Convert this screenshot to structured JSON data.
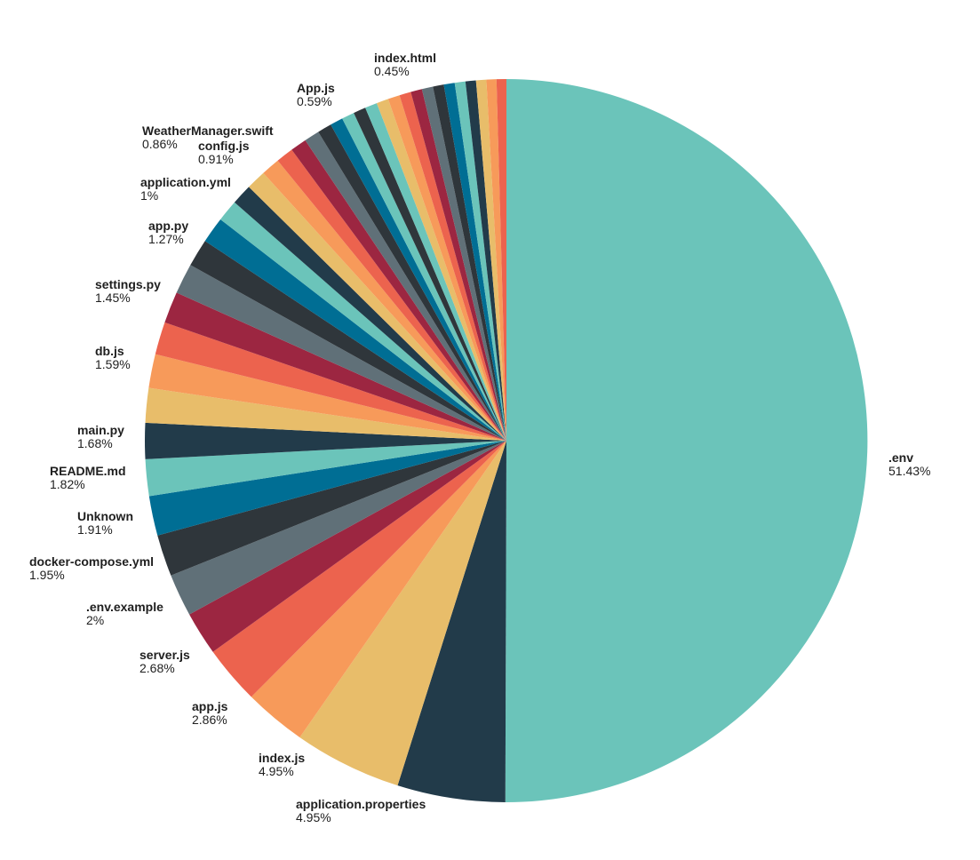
{
  "chart_data": {
    "type": "pie",
    "title": "",
    "start": "top, clockwise",
    "slices": [
      {
        "name": ".env",
        "pct_label": "51.43%",
        "value": 51.43,
        "color": "#6bc4ba",
        "labeled": true
      },
      {
        "name": "application.properties",
        "pct_label": "4.95%",
        "value": 4.95,
        "color": "#223b4a",
        "labeled": true
      },
      {
        "name": "index.js",
        "pct_label": "4.95%",
        "value": 4.95,
        "color": "#e8bd6a",
        "labeled": true
      },
      {
        "name": "app.js",
        "pct_label": "2.86%",
        "value": 2.86,
        "color": "#f79a5a",
        "labeled": true
      },
      {
        "name": "server.js",
        "pct_label": "2.68%",
        "value": 2.68,
        "color": "#ec634e",
        "labeled": true
      },
      {
        "name": ".env.example",
        "pct_label": "2%",
        "value": 2.0,
        "color": "#9c2641",
        "labeled": true
      },
      {
        "name": "docker-compose.yml",
        "pct_label": "1.95%",
        "value": 1.95,
        "color": "#607078",
        "labeled": true
      },
      {
        "name": "Unknown",
        "pct_label": "1.91%",
        "value": 1.91,
        "color": "#2f363b",
        "labeled": true
      },
      {
        "name": "README.md",
        "pct_label": "1.82%",
        "value": 1.82,
        "color": "#006e94",
        "labeled": true
      },
      {
        "name": "main.py",
        "pct_label": "1.68%",
        "value": 1.68,
        "color": "#6bc4ba",
        "labeled": true
      },
      {
        "name": "",
        "pct_label": "",
        "value": 1.65,
        "color": "#223b4a",
        "labeled": false
      },
      {
        "name": "db.js",
        "pct_label": "1.59%",
        "value": 1.59,
        "color": "#e8bd6a",
        "labeled": true
      },
      {
        "name": "",
        "pct_label": "",
        "value": 1.55,
        "color": "#f79a5a",
        "labeled": false
      },
      {
        "name": "",
        "pct_label": "",
        "value": 1.5,
        "color": "#ec634e",
        "labeled": false
      },
      {
        "name": "settings.py",
        "pct_label": "1.45%",
        "value": 1.45,
        "color": "#9c2641",
        "labeled": true
      },
      {
        "name": "",
        "pct_label": "",
        "value": 1.4,
        "color": "#607078",
        "labeled": false
      },
      {
        "name": "app.py",
        "pct_label": "1.27%",
        "value": 1.27,
        "color": "#2f363b",
        "labeled": true
      },
      {
        "name": "",
        "pct_label": "",
        "value": 1.2,
        "color": "#006e94",
        "labeled": false
      },
      {
        "name": "application.yml",
        "pct_label": "1%",
        "value": 1.0,
        "color": "#6bc4ba",
        "labeled": true
      },
      {
        "name": "",
        "pct_label": "",
        "value": 0.95,
        "color": "#223b4a",
        "labeled": false
      },
      {
        "name": "config.js",
        "pct_label": "0.91%",
        "value": 0.91,
        "color": "#e8bd6a",
        "labeled": true
      },
      {
        "name": "WeatherManager.swift",
        "pct_label": "0.86%",
        "value": 0.86,
        "color": "#f79a5a",
        "labeled": true
      },
      {
        "name": "",
        "pct_label": "",
        "value": 0.8,
        "color": "#ec634e",
        "labeled": false
      },
      {
        "name": "",
        "pct_label": "",
        "value": 0.75,
        "color": "#9c2641",
        "labeled": false
      },
      {
        "name": "",
        "pct_label": "",
        "value": 0.7,
        "color": "#607078",
        "labeled": false
      },
      {
        "name": "",
        "pct_label": "",
        "value": 0.65,
        "color": "#2f363b",
        "labeled": false
      },
      {
        "name": "App.js",
        "pct_label": "0.59%",
        "value": 0.59,
        "color": "#006e94",
        "labeled": true
      },
      {
        "name": "",
        "pct_label": "",
        "value": 0.58,
        "color": "#6bc4ba",
        "labeled": false
      },
      {
        "name": "",
        "pct_label": "",
        "value": 0.57,
        "color": "#2f363b",
        "labeled": false
      },
      {
        "name": "",
        "pct_label": "",
        "value": 0.56,
        "color": "#6bc4ba",
        "labeled": false
      },
      {
        "name": "",
        "pct_label": "",
        "value": 0.55,
        "color": "#e8bd6a",
        "labeled": false
      },
      {
        "name": "",
        "pct_label": "",
        "value": 0.54,
        "color": "#f79a5a",
        "labeled": false
      },
      {
        "name": "",
        "pct_label": "",
        "value": 0.53,
        "color": "#ec634e",
        "labeled": false
      },
      {
        "name": "",
        "pct_label": "",
        "value": 0.52,
        "color": "#9c2641",
        "labeled": false
      },
      {
        "name": "",
        "pct_label": "",
        "value": 0.51,
        "color": "#607078",
        "labeled": false
      },
      {
        "name": "",
        "pct_label": "",
        "value": 0.5,
        "color": "#2f363b",
        "labeled": false
      },
      {
        "name": "",
        "pct_label": "",
        "value": 0.5,
        "color": "#006e94",
        "labeled": false
      },
      {
        "name": "",
        "pct_label": "",
        "value": 0.49,
        "color": "#6bc4ba",
        "labeled": false
      },
      {
        "name": "",
        "pct_label": "",
        "value": 0.48,
        "color": "#223b4a",
        "labeled": false
      },
      {
        "name": "",
        "pct_label": "",
        "value": 0.47,
        "color": "#e8bd6a",
        "labeled": false
      },
      {
        "name": "",
        "pct_label": "",
        "value": 0.46,
        "color": "#f79a5a",
        "labeled": false
      },
      {
        "name": "index.html",
        "pct_label": "0.45%",
        "value": 0.45,
        "color": "#ec634e",
        "labeled": true
      }
    ]
  }
}
